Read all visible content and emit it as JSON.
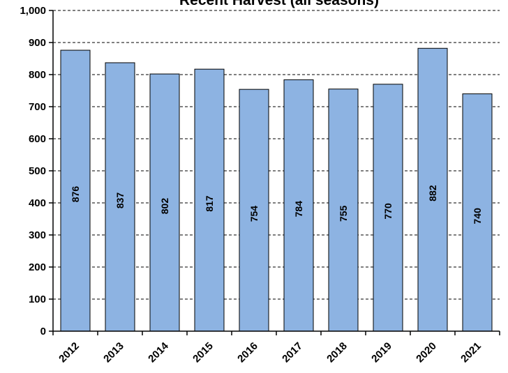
{
  "chart_data": {
    "type": "bar",
    "title": "Recent Harvest (all seasons)",
    "categories": [
      "2012",
      "2013",
      "2014",
      "2015",
      "2016",
      "2017",
      "2018",
      "2019",
      "2020",
      "2021"
    ],
    "values": [
      876,
      837,
      802,
      817,
      754,
      784,
      755,
      770,
      882,
      740
    ],
    "value_labels": [
      "876",
      "837",
      "802",
      "817",
      "754",
      "784",
      "755",
      "770",
      "882",
      "740"
    ],
    "ylim": [
      0,
      1000
    ],
    "yticks": [
      0,
      100,
      200,
      300,
      400,
      500,
      600,
      700,
      800,
      900,
      1000
    ],
    "ytick_labels": [
      "0",
      "100",
      "200",
      "300",
      "400",
      "500",
      "600",
      "700",
      "800",
      "900",
      "1,000"
    ],
    "grid": true,
    "bar_color": "#8db3e2",
    "xlabel": "",
    "ylabel": ""
  }
}
